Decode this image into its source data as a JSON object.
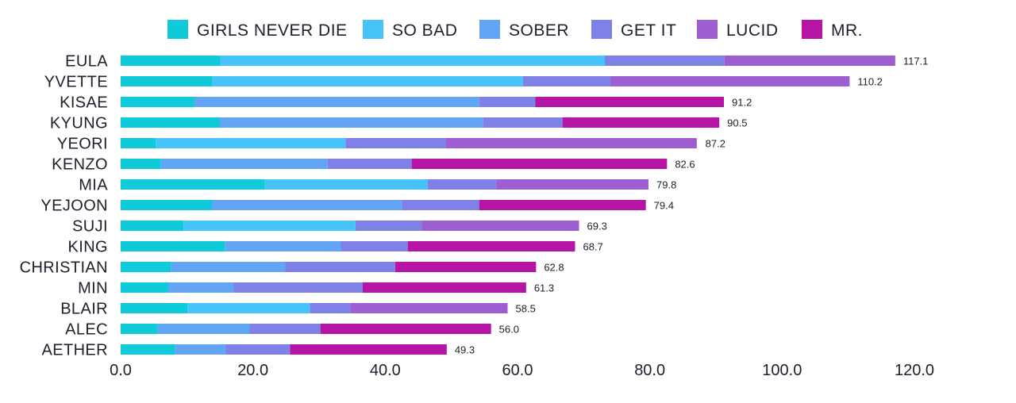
{
  "chart_data": {
    "type": "bar",
    "orientation": "horizontal",
    "stacked": true,
    "title": "",
    "xlabel": "",
    "ylabel": "",
    "xlim": [
      0,
      120
    ],
    "x_ticks": [
      0,
      20,
      40,
      60,
      80,
      100,
      120
    ],
    "x_tick_labels": [
      "0.0",
      "20.0",
      "40.0",
      "60.0",
      "80.0",
      "100.0",
      "120.0"
    ],
    "grid": false,
    "legend_position": "top",
    "categories": [
      "EULA",
      "YVETTE",
      "KISAE",
      "KYUNG",
      "YEORI",
      "KENZO",
      "MIA",
      "YEJOON",
      "SUJI",
      "KING",
      "CHRISTIAN",
      "MIN",
      "BLAIR",
      "ALEC",
      "AETHER"
    ],
    "series": [
      {
        "name": "GIRLS NEVER DIE",
        "color": "#0fcbd9",
        "values": [
          15.0,
          13.9,
          11.1,
          15.0,
          5.3,
          6.1,
          21.8,
          13.8,
          9.5,
          15.8,
          7.6,
          7.2,
          10.1,
          5.6,
          8.2
        ]
      },
      {
        "name": "SO BAD",
        "color": "#46c3f8",
        "values": [
          58.2,
          46.9,
          0,
          0,
          28.7,
          0,
          24.6,
          0,
          26.0,
          0,
          0,
          0,
          18.5,
          0,
          0
        ]
      },
      {
        "name": "SOBER",
        "color": "#62a5f5",
        "values": [
          0,
          0,
          43.1,
          39.8,
          0,
          25.2,
          0,
          28.7,
          0,
          17.5,
          17.3,
          9.9,
          0,
          13.9,
          7.7
        ]
      },
      {
        "name": "GET IT",
        "color": "#7f80e8",
        "values": [
          18.1,
          13.3,
          8.5,
          12.0,
          15.2,
          12.7,
          10.4,
          11.7,
          10.0,
          10.1,
          16.6,
          19.5,
          6.1,
          10.7,
          9.7
        ]
      },
      {
        "name": "LUCID",
        "color": "#9c5ed0",
        "values": [
          25.8,
          36.1,
          0,
          0,
          37.9,
          0,
          23.0,
          0,
          23.8,
          0,
          0,
          0,
          23.8,
          0,
          0
        ]
      },
      {
        "name": "MR.",
        "color": "#b614a5",
        "values": [
          0,
          0,
          28.5,
          23.7,
          0,
          38.6,
          0,
          25.2,
          0,
          25.3,
          21.3,
          24.7,
          0,
          25.8,
          23.7
        ]
      }
    ],
    "totals": [
      117.1,
      110.2,
      91.2,
      90.5,
      87.2,
      82.6,
      79.8,
      79.4,
      69.3,
      68.7,
      62.8,
      61.3,
      58.5,
      56.0,
      49.3
    ],
    "total_labels": [
      "117.1",
      "110.2",
      "91.2",
      "90.5",
      "87.2",
      "82.6",
      "79.8",
      "79.4",
      "69.3",
      "68.7",
      "62.8",
      "61.3",
      "58.5",
      "56.0",
      "49.3"
    ]
  }
}
